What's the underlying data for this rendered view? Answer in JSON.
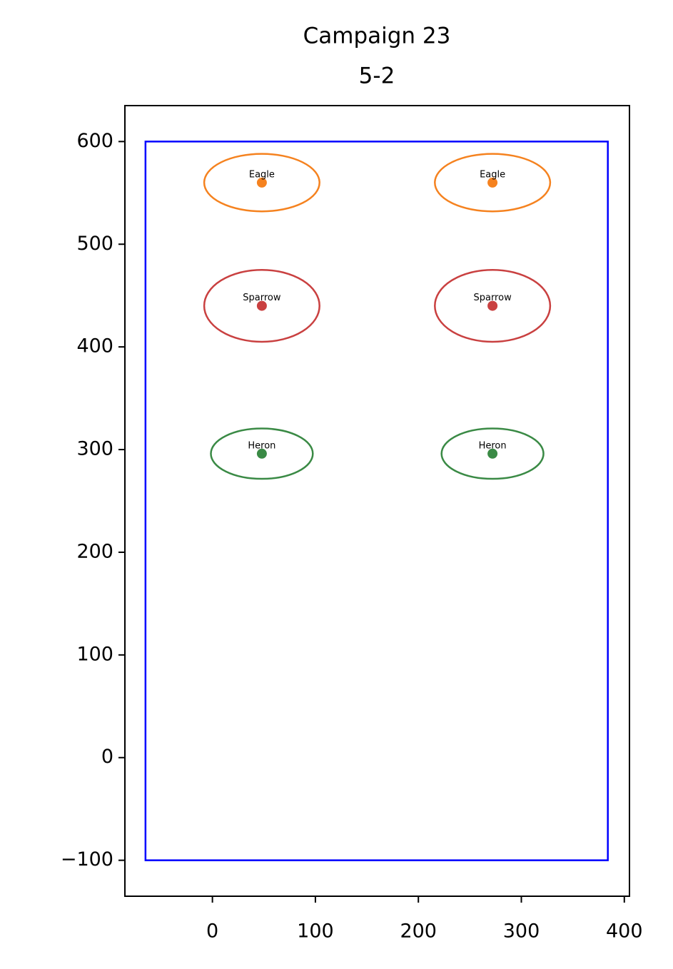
{
  "chart_data": {
    "type": "scatter",
    "title": "Campaign 23",
    "subtitle": "5-2",
    "xlim": [
      -85,
      405
    ],
    "ylim": [
      -135,
      635
    ],
    "xticks": [
      0,
      100,
      200,
      300,
      400
    ],
    "yticks": [
      {
        "value": -100,
        "label": "−100"
      },
      0,
      100,
      200,
      300,
      400,
      500,
      600
    ],
    "grid": false,
    "boundary": {
      "x": [
        -65,
        384
      ],
      "y": [
        -100,
        600
      ],
      "color": "#0000ff"
    },
    "series": [
      {
        "name": "Eagle",
        "color": "#f5821f",
        "x": [
          48,
          272
        ],
        "values": [
          560,
          560
        ],
        "width": 112,
        "height": 56
      },
      {
        "name": "Sparrow",
        "color": "#c94040",
        "x": [
          48,
          272
        ],
        "values": [
          440,
          440
        ],
        "width": 112,
        "height": 70
      },
      {
        "name": "Heron",
        "color": "#3a8a45",
        "x": [
          48,
          272
        ],
        "values": [
          296,
          296
        ],
        "width": 99,
        "height": 49
      }
    ]
  }
}
